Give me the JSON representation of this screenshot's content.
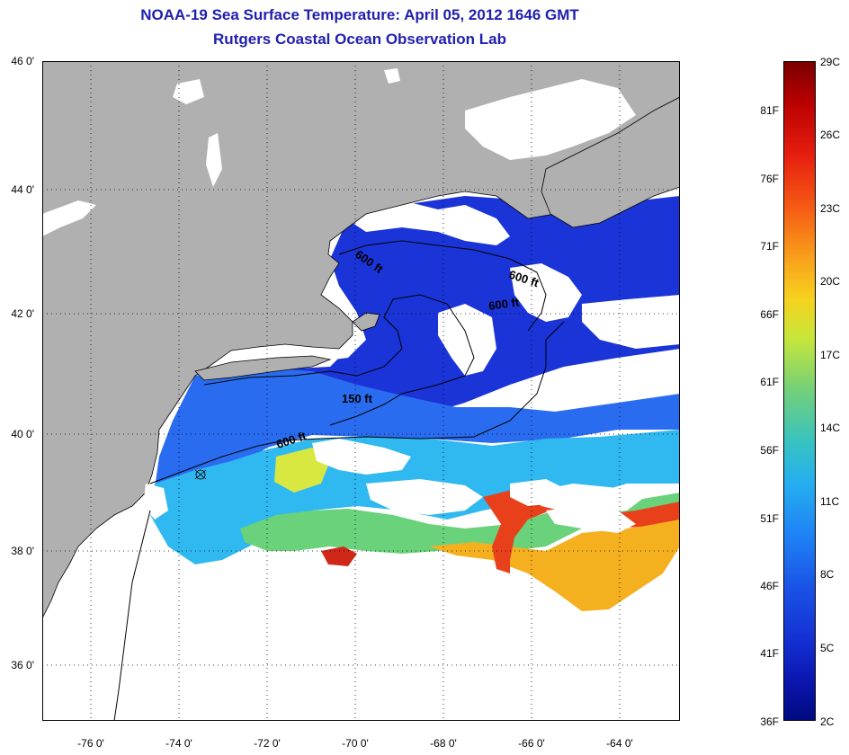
{
  "title_line1": "NOAA-19 Sea Surface Temperature:  April 05, 2012 1646 GMT",
  "title_line2": "Rutgers Coastal Ocean Observation Lab",
  "lat_labels": [
    "46 0'",
    "44 0'",
    "42 0'",
    "40 0'",
    "38 0'",
    "36 0'"
  ],
  "lon_labels": [
    "-76 0'",
    "-74 0'",
    "-72 0'",
    "-70 0'",
    "-68 0'",
    "-66 0'",
    "-64 0'"
  ],
  "contour_labels": {
    "gom_600_a": "600 ft",
    "gom_600_b": "600 ft",
    "gom_600_c": "600 ft",
    "shelf_150": "150 ft",
    "shelf_600": "600 ft"
  },
  "colorbar": {
    "fahrenheit": [
      "81F",
      "76F",
      "71F",
      "66F",
      "61F",
      "56F",
      "51F",
      "46F",
      "41F",
      "36F"
    ],
    "celsius": [
      "29C",
      "26C",
      "23C",
      "20C",
      "17C",
      "14C",
      "11C",
      "8C",
      "5C",
      "2C"
    ]
  },
  "colors": {
    "title": "#1f1fb0",
    "land": "#b0b0b0",
    "cold_water": "#1030d0",
    "gulf_stream": "#e8401a"
  }
}
